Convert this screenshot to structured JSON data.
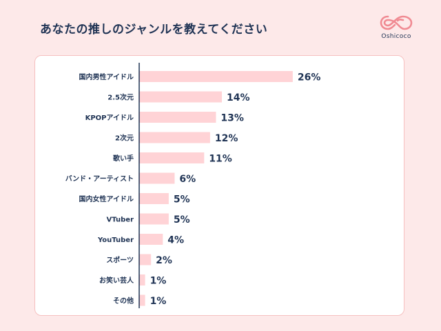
{
  "title": "あなたの推しのジャンルを教えてください",
  "logo": {
    "text": "Oshicoco",
    "icon": "oshicoco-logo-icon"
  },
  "colors": {
    "bar": "#ffd3d6",
    "text": "#1f3354",
    "axis": "#1f3354",
    "border": "#f6c0c0",
    "background": "#fde9e9"
  },
  "chart_data": {
    "type": "bar",
    "orientation": "horizontal",
    "categories": [
      "国内男性アイドル",
      "2.5次元",
      "KPOPアイドル",
      "2次元",
      "歌い手",
      "バンド・アーティスト",
      "国内女性アイドル",
      "VTuber",
      "YouTuber",
      "スポーツ",
      "お笑い芸人",
      "その他"
    ],
    "values": [
      26,
      14,
      13,
      12,
      11,
      6,
      5,
      5,
      4,
      2,
      1,
      1
    ],
    "value_labels": [
      "26%",
      "14%",
      "13%",
      "12%",
      "11%",
      "6%",
      "5%",
      "5%",
      "4%",
      "2%",
      "1%",
      "1%"
    ],
    "unit": "%",
    "xlim": [
      0,
      35
    ],
    "grid": false,
    "legend": "none"
  }
}
